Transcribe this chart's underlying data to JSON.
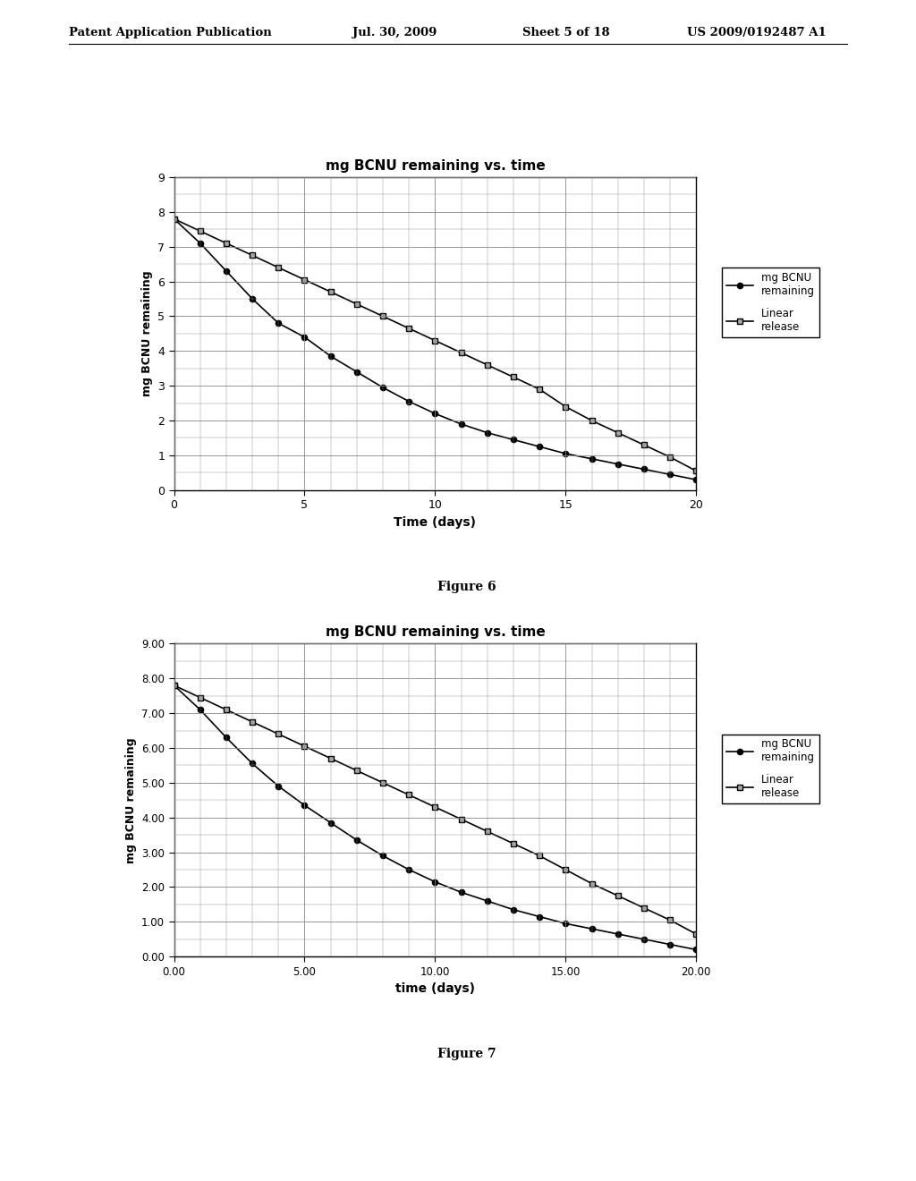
{
  "fig6": {
    "title": "mg BCNU remaining vs. time",
    "xlabel": "Time (days)",
    "ylabel": "mg BCNU remaining",
    "xlim": [
      0,
      20
    ],
    "ylim": [
      0,
      9
    ],
    "xticks": [
      0,
      5,
      10,
      15,
      20
    ],
    "yticks": [
      0,
      1,
      2,
      3,
      4,
      5,
      6,
      7,
      8,
      9
    ],
    "bcnu_x": [
      0,
      1,
      2,
      3,
      4,
      5,
      6,
      7,
      8,
      9,
      10,
      11,
      12,
      13,
      14,
      15,
      16,
      17,
      18,
      19,
      20
    ],
    "bcnu_y": [
      7.8,
      7.1,
      6.3,
      5.5,
      4.8,
      4.4,
      3.85,
      3.4,
      2.95,
      2.55,
      2.2,
      1.9,
      1.65,
      1.45,
      1.25,
      1.05,
      0.9,
      0.75,
      0.6,
      0.45,
      0.3
    ],
    "linear_x": [
      0,
      1,
      2,
      3,
      4,
      5,
      6,
      7,
      8,
      9,
      10,
      11,
      12,
      13,
      14,
      15,
      16,
      17,
      18,
      19,
      20
    ],
    "linear_y": [
      7.8,
      7.45,
      7.1,
      6.75,
      6.4,
      6.05,
      5.7,
      5.35,
      5.0,
      4.65,
      4.3,
      3.95,
      3.6,
      3.25,
      2.9,
      2.4,
      2.0,
      1.65,
      1.3,
      0.95,
      0.55
    ],
    "legend1": "mg BCNU\nremaining",
    "legend2": "Linear\nrelease",
    "figure_label": "Figure 6"
  },
  "fig7": {
    "title": "mg BCNU remaining vs. time",
    "xlabel": "time (days)",
    "ylabel": "mg BCNU remaining",
    "xlim": [
      0,
      20
    ],
    "ylim": [
      0,
      9
    ],
    "xticks": [
      0.0,
      5.0,
      10.0,
      15.0,
      20.0
    ],
    "xtick_labels": [
      "0.00",
      "5.00",
      "10.00",
      "15.00",
      "20.00"
    ],
    "yticks": [
      0.0,
      1.0,
      2.0,
      3.0,
      4.0,
      5.0,
      6.0,
      7.0,
      8.0,
      9.0
    ],
    "ytick_labels": [
      "0.00",
      "1.00",
      "2.00",
      "3.00",
      "4.00",
      "5.00",
      "6.00",
      "7.00",
      "8.00",
      "9.00"
    ],
    "bcnu_x": [
      0,
      1,
      2,
      3,
      4,
      5,
      6,
      7,
      8,
      9,
      10,
      11,
      12,
      13,
      14,
      15,
      16,
      17,
      18,
      19,
      20
    ],
    "bcnu_y": [
      7.8,
      7.1,
      6.3,
      5.55,
      4.9,
      4.35,
      3.85,
      3.35,
      2.9,
      2.5,
      2.15,
      1.85,
      1.6,
      1.35,
      1.15,
      0.95,
      0.8,
      0.65,
      0.5,
      0.35,
      0.2
    ],
    "linear_x": [
      0,
      1,
      2,
      3,
      4,
      5,
      6,
      7,
      8,
      9,
      10,
      11,
      12,
      13,
      14,
      15,
      16,
      17,
      18,
      19,
      20
    ],
    "linear_y": [
      7.8,
      7.45,
      7.1,
      6.75,
      6.4,
      6.05,
      5.7,
      5.35,
      5.0,
      4.65,
      4.3,
      3.95,
      3.6,
      3.25,
      2.9,
      2.5,
      2.1,
      1.75,
      1.4,
      1.05,
      0.65
    ],
    "legend1": "mg BCNU\nremaining",
    "legend2": "Linear\nrelease",
    "figure_label": "Figure 7"
  },
  "header_left": "Patent Application Publication",
  "header_date": "Jul. 30, 2009",
  "header_sheet": "Sheet 5 of 18",
  "header_right": "US 2009/0192487 A1",
  "bg_color": "#ffffff",
  "plot_bg": "#ffffff",
  "line_color": "#000000",
  "grid_color": "#888888"
}
